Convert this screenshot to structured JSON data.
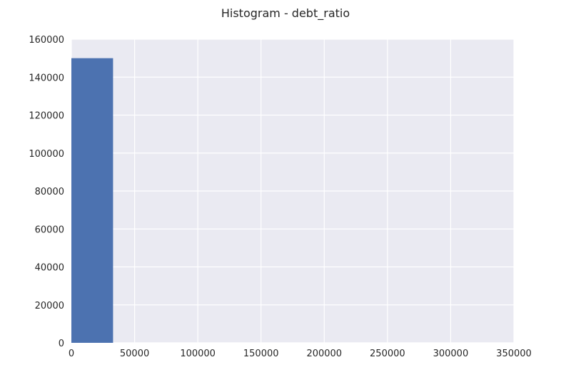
{
  "chart_data": {
    "type": "bar",
    "title": "Histogram - debt_ratio",
    "xlabel": "",
    "ylabel": "",
    "xlim": [
      0,
      350000
    ],
    "ylim": [
      0,
      160000
    ],
    "xticks": [
      0,
      50000,
      100000,
      150000,
      200000,
      250000,
      300000,
      350000
    ],
    "yticks": [
      0,
      20000,
      40000,
      60000,
      80000,
      100000,
      120000,
      140000,
      160000
    ],
    "bins": [
      {
        "x0": 0,
        "x1": 32967,
        "count": 150000
      }
    ],
    "grid": true,
    "colors": {
      "bar": "#4c72b0",
      "background": "#eaeaf2",
      "grid": "#ffffff"
    }
  }
}
